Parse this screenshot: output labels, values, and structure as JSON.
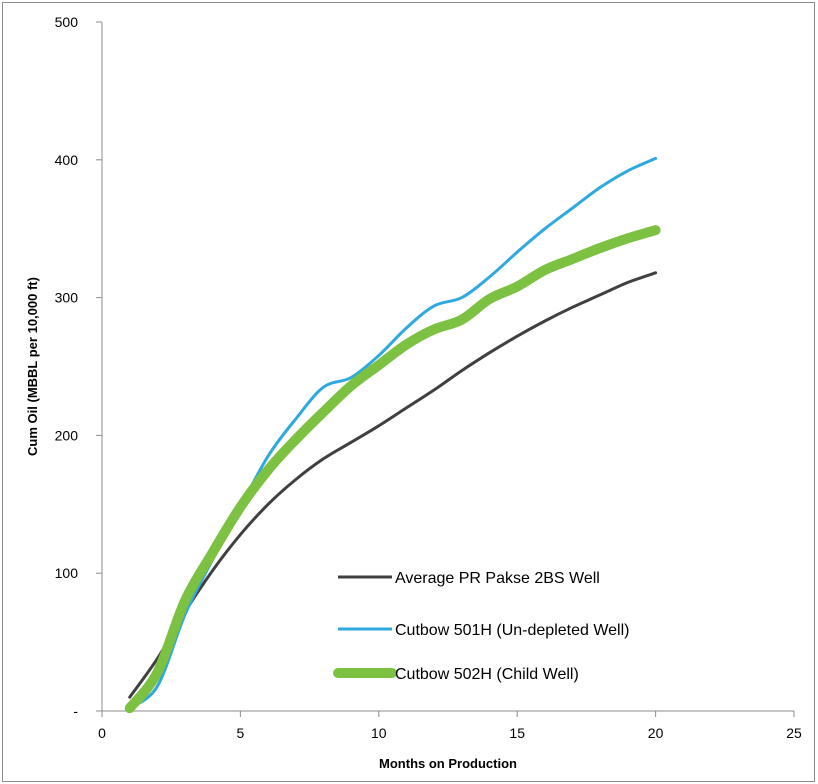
{
  "chart_data": {
    "type": "line",
    "xlabel": "Months on Production",
    "ylabel": "Cum Oil (MBBL per 10,000 ft)",
    "xlim": [
      0,
      25
    ],
    "ylim": [
      0,
      500
    ],
    "x_ticks": [
      "0",
      "5",
      "10",
      "15",
      "20",
      "25"
    ],
    "y_ticks": [
      "-",
      "100",
      "200",
      "300",
      "400",
      "500"
    ],
    "grid": false,
    "legend_position": "bottom-right",
    "series": [
      {
        "name": "Average PR Pakse 2BS Well",
        "color": "#404040",
        "stroke_weight": "thin",
        "x": [
          1,
          2,
          3,
          4,
          5,
          6,
          7,
          8,
          9,
          10,
          11,
          12,
          13,
          14,
          15,
          16,
          17,
          18,
          19,
          20
        ],
        "y": [
          10,
          38,
          72,
          102,
          128,
          150,
          168,
          183,
          195,
          207,
          220,
          233,
          247,
          260,
          272,
          283,
          293,
          302,
          311,
          318
        ]
      },
      {
        "name": "Cutbow 501H (Un-depleted Well)",
        "color": "#2ea9df",
        "stroke_weight": "medium",
        "x": [
          1,
          2,
          3,
          4,
          5,
          6,
          7,
          8,
          9,
          10,
          11,
          12,
          13,
          14,
          15,
          16,
          17,
          18,
          19,
          20
        ],
        "y": [
          2,
          18,
          70,
          110,
          148,
          185,
          212,
          235,
          242,
          258,
          278,
          294,
          300,
          315,
          333,
          350,
          365,
          380,
          392,
          401
        ]
      },
      {
        "name": "Cutbow 502H (Child Well)",
        "color": "#7cc142",
        "stroke_weight": "thick",
        "x": [
          1,
          2,
          3,
          4,
          5,
          6,
          7,
          8,
          9,
          10,
          11,
          12,
          13,
          14,
          15,
          16,
          17,
          18,
          19,
          20
        ],
        "y": [
          2,
          28,
          80,
          115,
          148,
          175,
          197,
          217,
          236,
          251,
          266,
          277,
          284,
          299,
          308,
          320,
          328,
          336,
          343,
          349
        ]
      }
    ]
  }
}
